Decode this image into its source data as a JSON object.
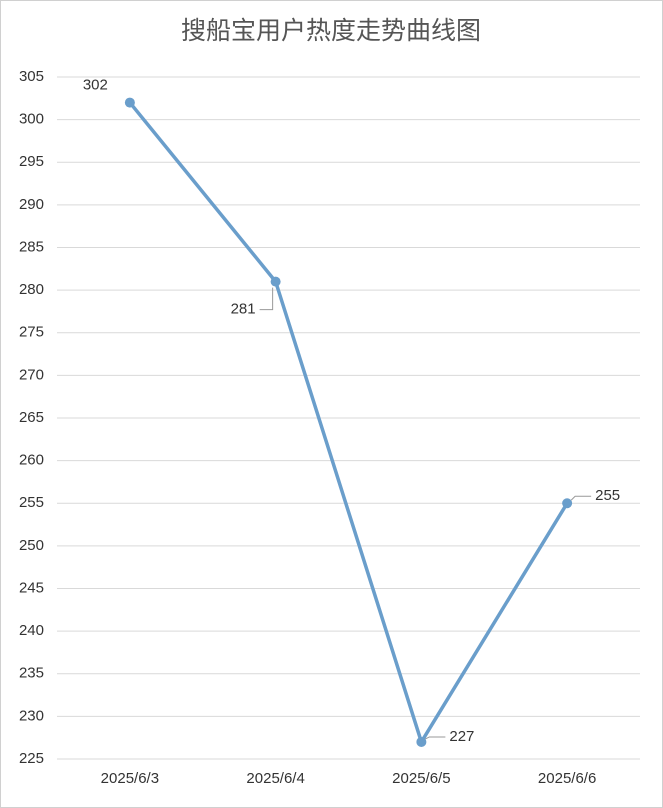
{
  "chart_data": {
    "type": "line",
    "title": "搜船宝用户热度走势曲线图",
    "categories": [
      "2025/6/3",
      "2025/6/4",
      "2025/6/5",
      "2025/6/6"
    ],
    "values": [
      302,
      281,
      227,
      255
    ],
    "color": "#6a9ecb",
    "ylim": [
      225,
      305
    ],
    "yticks": [
      225,
      230,
      235,
      240,
      245,
      250,
      255,
      260,
      265,
      270,
      275,
      280,
      285,
      290,
      295,
      300,
      305
    ],
    "grid": true,
    "data_labels": true
  }
}
